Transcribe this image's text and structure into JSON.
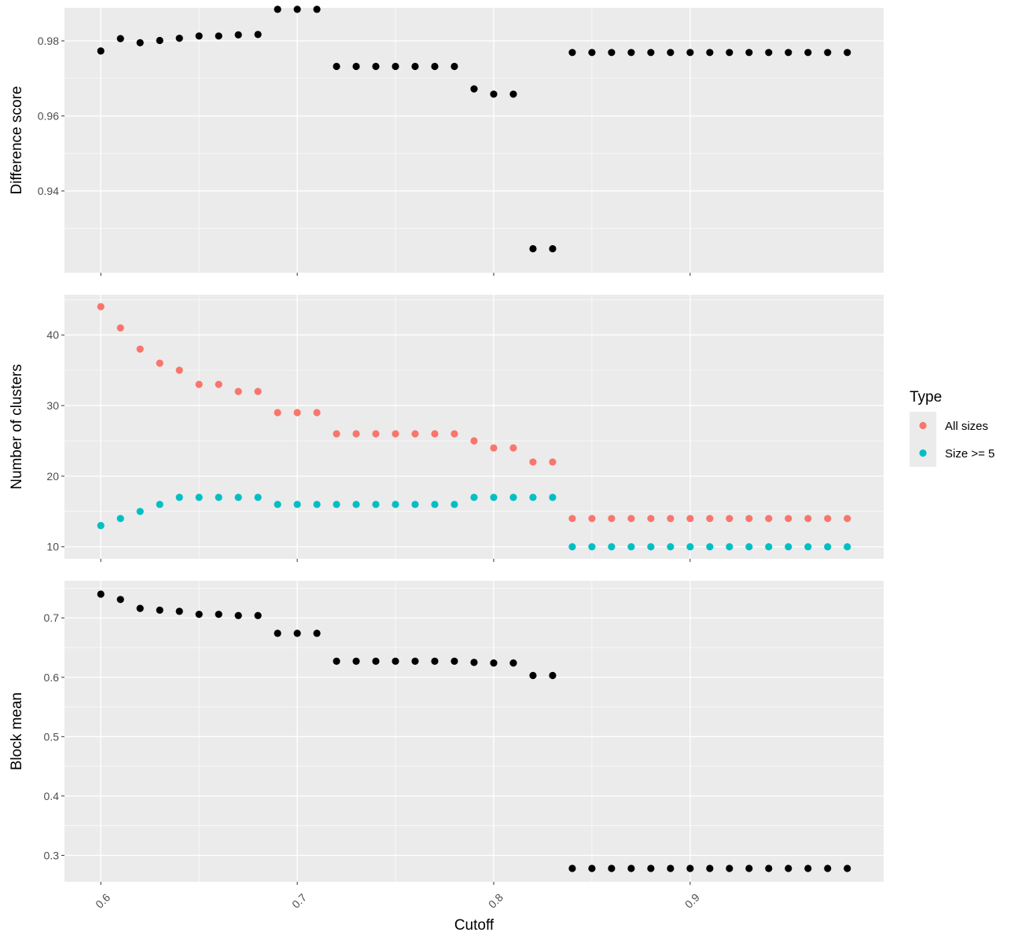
{
  "chart_data": {
    "type": "scatter",
    "xlabel": "Cutoff",
    "x_ticks": [
      "0.6",
      "0.7",
      "0.8",
      "0.9"
    ],
    "x": [
      0.6,
      0.61,
      0.62,
      0.63,
      0.64,
      0.65,
      0.66,
      0.67,
      0.68,
      0.69,
      0.7,
      0.71,
      0.72,
      0.73,
      0.74,
      0.75,
      0.76,
      0.77,
      0.78,
      0.79,
      0.8,
      0.81,
      0.82,
      0.83,
      0.84,
      0.85,
      0.86,
      0.87,
      0.88,
      0.89,
      0.9,
      0.91,
      0.92,
      0.93,
      0.94,
      0.95,
      0.96,
      0.97,
      0.98
    ],
    "xlim": [
      0.5815,
      0.9985
    ],
    "panels": [
      {
        "ylabel": "Difference score",
        "ylim": [
          0.9182,
          0.9888
        ],
        "y_ticks": [
          0.94,
          0.96,
          0.98
        ],
        "y_tick_labels": [
          "0.94",
          "0.96",
          "0.98"
        ],
        "series": [
          {
            "values": [
              0.9773,
              0.9806,
              0.9795,
              0.9801,
              0.9807,
              0.9813,
              0.9813,
              0.9816,
              0.9817,
              0.9884,
              0.9884,
              0.9884,
              0.9732,
              0.9732,
              0.9732,
              0.9732,
              0.9732,
              0.9732,
              0.9732,
              0.9672,
              0.9658,
              0.9658,
              0.9246,
              0.9246,
              0.9769,
              0.9769,
              0.9769,
              0.9769,
              0.9769,
              0.9769,
              0.9769,
              0.9769,
              0.9769,
              0.9769,
              0.9769,
              0.9769,
              0.9769,
              0.9769,
              0.9769
            ],
            "color": "#000000"
          }
        ]
      },
      {
        "ylabel": "Number of clusters",
        "ylim": [
          8.3,
          45.7
        ],
        "y_ticks": [
          10,
          20,
          30,
          40
        ],
        "y_tick_labels": [
          "10",
          "20",
          "30",
          "40"
        ],
        "series": [
          {
            "name": "All sizes",
            "values": [
              44,
              41,
              38,
              36,
              35,
              33,
              33,
              32,
              32,
              29,
              29,
              29,
              26,
              26,
              26,
              26,
              26,
              26,
              26,
              25,
              24,
              24,
              22,
              22,
              14,
              14,
              14,
              14,
              14,
              14,
              14,
              14,
              14,
              14,
              14,
              14,
              14,
              14,
              14
            ],
            "color": "#F8766D"
          },
          {
            "name": "Size >= 5",
            "values": [
              13,
              14,
              15,
              16,
              17,
              17,
              17,
              17,
              17,
              16,
              16,
              16,
              16,
              16,
              16,
              16,
              16,
              16,
              16,
              17,
              17,
              17,
              17,
              17,
              10,
              10,
              10,
              10,
              10,
              10,
              10,
              10,
              10,
              10,
              10,
              10,
              10,
              10,
              10
            ],
            "color": "#00BFC4"
          }
        ]
      },
      {
        "ylabel": "Block mean",
        "ylim": [
          0.2555,
          0.7625
        ],
        "y_ticks": [
          0.3,
          0.4,
          0.5,
          0.6,
          0.7
        ],
        "y_tick_labels": [
          "0.3",
          "0.4",
          "0.5",
          "0.6",
          "0.7"
        ],
        "series": [
          {
            "values": [
              0.74,
              0.731,
              0.716,
              0.713,
              0.711,
              0.706,
              0.706,
              0.704,
              0.704,
              0.674,
              0.674,
              0.674,
              0.627,
              0.627,
              0.627,
              0.627,
              0.627,
              0.627,
              0.627,
              0.625,
              0.624,
              0.624,
              0.603,
              0.603,
              0.278,
              0.278,
              0.278,
              0.278,
              0.278,
              0.278,
              0.278,
              0.278,
              0.278,
              0.278,
              0.278,
              0.278,
              0.278,
              0.278,
              0.278
            ],
            "color": "#000000"
          }
        ]
      }
    ],
    "legend": {
      "title": "Type",
      "placement": "right",
      "items": [
        {
          "label": "All sizes",
          "color": "#F8766D"
        },
        {
          "label": "Size >= 5",
          "color": "#00BFC4"
        }
      ]
    },
    "panel_background": "#EBEBEB",
    "grid": true,
    "grid_color": "#FFFFFF"
  }
}
